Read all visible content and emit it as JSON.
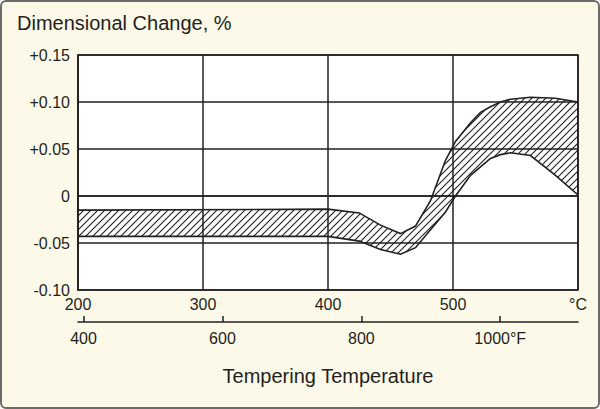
{
  "chart_data": {
    "type": "band",
    "title": "Dimensional Change, %",
    "xlabel": "Tempering Temperature",
    "color": "#231f20",
    "grid": true,
    "x": [
      200,
      400,
      425,
      442,
      458,
      470,
      482,
      494,
      502,
      514,
      522,
      530,
      538,
      546,
      562,
      582,
      600
    ],
    "upper": [
      -0.015,
      -0.014,
      -0.018,
      -0.031,
      -0.04,
      -0.032,
      -0.005,
      0.038,
      0.058,
      0.078,
      0.089,
      0.095,
      0.1,
      0.103,
      0.105,
      0.104,
      0.1
    ],
    "lower": [
      -0.043,
      -0.043,
      -0.048,
      -0.057,
      -0.062,
      -0.055,
      -0.036,
      -0.017,
      0.0,
      0.022,
      0.031,
      0.04,
      0.044,
      0.046,
      0.043,
      0.022,
      0.001
    ],
    "xlim": [
      200,
      600
    ],
    "xticks": [
      200,
      300,
      400,
      500,
      {
        "value": 600,
        "label": "°C"
      }
    ],
    "x2lim": [
      392,
      1112
    ],
    "x2ticks": [
      400,
      600,
      800,
      {
        "value": 1000,
        "label": "1000°F"
      }
    ],
    "ylim": [
      -0.1,
      0.15
    ],
    "yticks": [
      {
        "value": -0.1,
        "label": "-0.10"
      },
      -0.05,
      0,
      {
        "value": 0.05,
        "label": "+0.05"
      },
      {
        "value": 0.1,
        "label": "+0.10"
      },
      {
        "value": 0.15,
        "label": "+0.15"
      }
    ]
  }
}
